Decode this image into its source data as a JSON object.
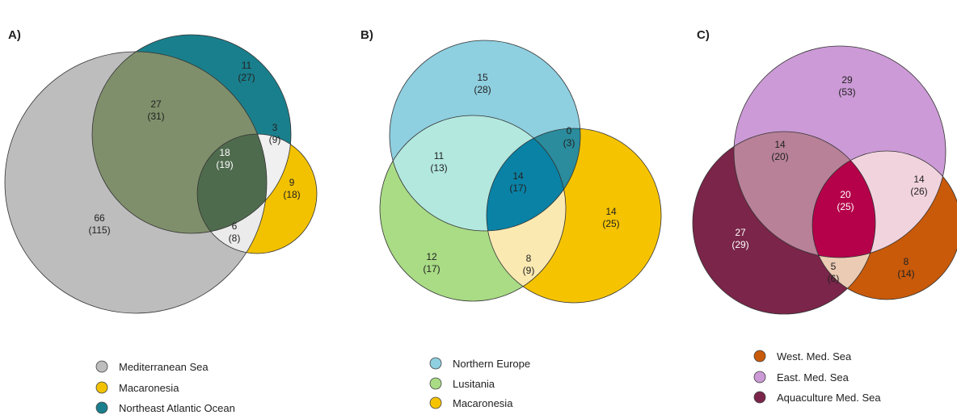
{
  "panels": [
    {
      "id": "A",
      "label": "A)",
      "sets": [
        {
          "name": "Mediterranean Sea",
          "color": "#bdbdbd"
        },
        {
          "name": "Macaronesia",
          "color": "#f2c200"
        },
        {
          "name": "Northeast Atlantic Ocean",
          "color": "#1a7f8c"
        }
      ],
      "regions": [
        {
          "sets": [
            "Mediterranean Sea"
          ],
          "value": "66",
          "total": "(115)"
        },
        {
          "sets": [
            "Northeast Atlantic Ocean"
          ],
          "value": "11",
          "total": "(27)"
        },
        {
          "sets": [
            "Macaronesia"
          ],
          "value": "9",
          "total": "(18)"
        },
        {
          "sets": [
            "Mediterranean Sea",
            "Northeast Atlantic Ocean"
          ],
          "value": "27",
          "total": "(31)"
        },
        {
          "sets": [
            "Macaronesia",
            "Northeast Atlantic Ocean"
          ],
          "value": "3",
          "total": "(9)"
        },
        {
          "sets": [
            "Mediterranean Sea",
            "Macaronesia"
          ],
          "value": "6",
          "total": "(8)"
        },
        {
          "sets": [
            "Mediterranean Sea",
            "Macaronesia",
            "Northeast Atlantic Ocean"
          ],
          "value": "18",
          "total": "(19)"
        }
      ]
    },
    {
      "id": "B",
      "label": "B)",
      "sets": [
        {
          "name": "Northern Europe",
          "color": "#8ecfe0"
        },
        {
          "name": "Lusitania",
          "color": "#a9dc85"
        },
        {
          "name": "Macaronesia",
          "color": "#f5c300"
        }
      ],
      "regions": [
        {
          "sets": [
            "Northern Europe"
          ],
          "value": "15",
          "total": "(28)"
        },
        {
          "sets": [
            "Lusitania"
          ],
          "value": "12",
          "total": "(17)"
        },
        {
          "sets": [
            "Macaronesia"
          ],
          "value": "14",
          "total": "(25)"
        },
        {
          "sets": [
            "Northern Europe",
            "Lusitania"
          ],
          "value": "11",
          "total": "(13)"
        },
        {
          "sets": [
            "Northern Europe",
            "Macaronesia"
          ],
          "value": "0",
          "total": "(3)"
        },
        {
          "sets": [
            "Lusitania",
            "Macaronesia"
          ],
          "value": "8",
          "total": "(9)"
        },
        {
          "sets": [
            "Northern Europe",
            "Lusitania",
            "Macaronesia"
          ],
          "value": "14",
          "total": "(17)"
        }
      ]
    },
    {
      "id": "C",
      "label": "C)",
      "sets": [
        {
          "name": "West. Med. Sea",
          "color": "#c85a0a"
        },
        {
          "name": "East. Med. Sea",
          "color": "#cc9ad6"
        },
        {
          "name": "Aquaculture Med. Sea",
          "color": "#7a2549"
        }
      ],
      "regions": [
        {
          "sets": [
            "East. Med. Sea"
          ],
          "value": "29",
          "total": "(53)"
        },
        {
          "sets": [
            "Aquaculture Med. Sea"
          ],
          "value": "27",
          "total": "(29)"
        },
        {
          "sets": [
            "West. Med. Sea"
          ],
          "value": "8",
          "total": "(14)"
        },
        {
          "sets": [
            "East. Med. Sea",
            "Aquaculture Med. Sea"
          ],
          "value": "14",
          "total": "(20)"
        },
        {
          "sets": [
            "East. Med. Sea",
            "West. Med. Sea"
          ],
          "value": "14",
          "total": "(26)"
        },
        {
          "sets": [
            "West. Med. Sea",
            "Aquaculture Med. Sea"
          ],
          "value": "5",
          "total": "(6)"
        },
        {
          "sets": [
            "West. Med. Sea",
            "East. Med. Sea",
            "Aquaculture Med. Sea"
          ],
          "value": "20",
          "total": "(25)"
        }
      ]
    }
  ]
}
